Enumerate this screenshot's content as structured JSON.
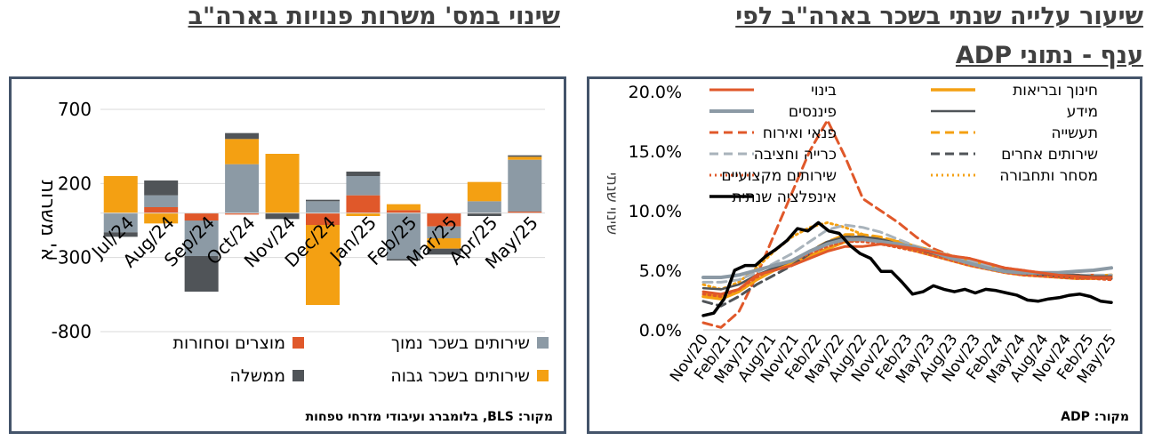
{
  "left": {
    "title": "שינוי במס' משרות פנויות בארה\"ב",
    "source": "מקור: BLS, בלומברג ועיבודי מזרחי טפחות",
    "chart_data": {
      "type": "bar",
      "stacked": true,
      "ylabel": "א' משרות",
      "ylim": [
        -800,
        700
      ],
      "yticks": [
        700,
        200,
        -300,
        -800
      ],
      "categories": [
        "Jul/24",
        "Aug/24",
        "Sep/24",
        "Oct/24",
        "Nov/24",
        "Dec/24",
        "Jan/25",
        "Feb/25",
        "Mar/25",
        "Apr/25",
        "May/25"
      ],
      "legend_position": "bottom",
      "series": [
        {
          "name": "מוצרים וסחורות",
          "color": "#e0582a",
          "values": [
            0,
            40,
            -50,
            -10,
            0,
            -80,
            120,
            20,
            -90,
            0,
            10
          ]
        },
        {
          "name": "שירותים בשכר נמוך",
          "color": "#8c9aa5",
          "values": [
            -130,
            80,
            -240,
            330,
            0,
            80,
            130,
            -310,
            -80,
            80,
            350
          ]
        },
        {
          "name": "שירותים בשכר גבוה",
          "color": "#f4a012",
          "values": [
            250,
            -70,
            0,
            170,
            400,
            -540,
            -20,
            40,
            -70,
            130,
            20
          ]
        },
        {
          "name": "ממשלה",
          "color": "#505458",
          "values": [
            -30,
            100,
            -240,
            40,
            -40,
            10,
            30,
            -10,
            -40,
            -20,
            10
          ]
        }
      ]
    }
  },
  "right": {
    "title_line1": "שיעור עלייה שנתי בשכר בארה\"ב לפי",
    "title_line2": "ענף - נתוני ADP",
    "source": "מקור: ADP",
    "chart_data": {
      "type": "line",
      "ylabel": "שינוי שנתי",
      "ylim": [
        0,
        20
      ],
      "yticks": [
        "0.0%",
        "5.0%",
        "10.0%",
        "15.0%",
        "20.0%"
      ],
      "x_tick_labels": [
        "Nov/20",
        "Feb/21",
        "May/21",
        "Aug/21",
        "Nov/21",
        "Feb/22",
        "May/22",
        "Aug/22",
        "Nov/22",
        "Feb/23",
        "May/23",
        "Aug/23",
        "Nov/23",
        "Feb/24",
        "May/24",
        "Aug/24",
        "Nov/24",
        "Feb/25",
        "May/25"
      ],
      "legend_position": "top",
      "series": [
        {
          "name": "בינוי",
          "color": "#e0582a",
          "dash": "solid",
          "width": 3,
          "values": [
            3.2,
            3.0,
            3.4,
            4.6,
            5.0,
            5.4,
            6.0,
            6.6,
            7.0,
            7.0,
            7.2,
            7.0,
            6.8,
            6.5,
            6.2,
            6.0,
            5.6,
            5.2,
            5.0,
            4.8,
            4.6,
            4.5,
            4.4,
            4.4
          ]
        },
        {
          "name": "חינוך ובריאות",
          "color": "#f4a012",
          "dash": "solid",
          "width": 3.5,
          "values": [
            2.8,
            2.6,
            3.2,
            4.2,
            5.0,
            5.6,
            6.2,
            6.8,
            7.4,
            7.6,
            7.6,
            7.4,
            7.0,
            6.6,
            6.2,
            5.8,
            5.4,
            5.0,
            4.8,
            4.6,
            4.5,
            4.5,
            4.5,
            4.6
          ]
        },
        {
          "name": "פיננסים",
          "color": "#8c9aa5",
          "dash": "solid",
          "width": 4,
          "values": [
            4.4,
            4.4,
            4.6,
            5.0,
            5.4,
            5.8,
            6.6,
            7.2,
            7.6,
            7.6,
            7.4,
            7.2,
            6.9,
            6.5,
            6.0,
            5.6,
            5.2,
            4.9,
            4.8,
            4.8,
            4.8,
            4.9,
            5.0,
            5.2
          ]
        },
        {
          "name": "מידע",
          "color": "#505458",
          "dash": "solid",
          "width": 2.5,
          "values": [
            3.5,
            3.4,
            3.8,
            4.6,
            5.2,
            5.8,
            6.6,
            7.4,
            7.8,
            7.8,
            7.6,
            7.2,
            6.8,
            6.4,
            6.0,
            5.6,
            5.2,
            5.0,
            4.8,
            4.7,
            4.6,
            4.6,
            4.5,
            4.5
          ]
        },
        {
          "name": "פנאי ואירוח",
          "color": "#e0582a",
          "dash": "dash",
          "width": 3,
          "values": [
            0.6,
            0.2,
            1.5,
            4.5,
            8.0,
            11.5,
            15.0,
            17.6,
            14.5,
            11.0,
            10.0,
            9.0,
            7.8,
            6.8,
            6.2,
            6.0,
            5.6,
            5.2,
            5.0,
            4.8,
            4.7,
            4.6,
            4.6,
            4.5
          ]
        },
        {
          "name": "תעשייה",
          "color": "#f4a012",
          "dash": "dash",
          "width": 3,
          "values": [
            3.0,
            2.8,
            3.2,
            4.2,
            5.0,
            5.8,
            6.6,
            7.4,
            8.0,
            8.0,
            7.8,
            7.4,
            7.0,
            6.6,
            6.2,
            5.8,
            5.4,
            5.0,
            4.8,
            4.6,
            4.5,
            4.4,
            4.4,
            4.4
          ]
        },
        {
          "name": "כרייה וחציבה",
          "color": "#a9b3bb",
          "dash": "dash",
          "width": 3,
          "values": [
            4.0,
            4.0,
            4.2,
            4.8,
            5.6,
            6.4,
            7.4,
            8.4,
            8.8,
            8.6,
            8.2,
            7.6,
            7.0,
            6.6,
            6.2,
            5.8,
            5.4,
            5.1,
            4.9,
            4.8,
            4.7,
            4.6,
            4.6,
            4.6
          ]
        },
        {
          "name": "שירותים אחרים",
          "color": "#505458",
          "dash": "dash",
          "width": 3,
          "values": [
            2.4,
            2.0,
            2.8,
            3.8,
            4.6,
            5.4,
            6.4,
            7.2,
            7.8,
            7.8,
            7.6,
            7.2,
            6.8,
            6.4,
            6.0,
            5.6,
            5.2,
            4.9,
            4.7,
            4.6,
            4.5,
            4.4,
            4.4,
            4.3
          ]
        },
        {
          "name": "שירותים מקצועיים",
          "color": "#e0582a",
          "dash": "dot",
          "width": 3,
          "values": [
            3.0,
            2.8,
            3.4,
            4.4,
            5.2,
            5.8,
            6.4,
            7.0,
            7.4,
            7.4,
            7.2,
            6.9,
            6.6,
            6.2,
            5.8,
            5.4,
            5.1,
            4.8,
            4.6,
            4.5,
            4.4,
            4.3,
            4.3,
            4.2
          ]
        },
        {
          "name": "מסחר ותחבורה",
          "color": "#f4a012",
          "dash": "dot",
          "width": 3,
          "values": [
            3.8,
            3.4,
            4.0,
            5.2,
            6.6,
            7.8,
            8.6,
            9.0,
            8.6,
            8.0,
            7.4,
            7.0,
            6.6,
            6.2,
            5.8,
            5.4,
            5.1,
            4.8,
            4.6,
            4.5,
            4.4,
            4.3,
            4.3,
            4.3
          ]
        },
        {
          "name": "אינפלציה שנתית",
          "color": "#000000",
          "dash": "solid",
          "width": 3.5,
          "values": [
            1.2,
            1.4,
            2.6,
            5.0,
            5.4,
            5.4,
            6.2,
            6.8,
            7.5,
            8.5,
            8.3,
            9.0,
            8.3,
            8.1,
            7.1,
            6.4,
            6.0,
            4.9,
            4.9,
            4.0,
            3.0,
            3.2,
            3.7,
            3.4,
            3.2,
            3.4,
            3.1,
            3.4,
            3.3,
            3.1,
            2.9,
            2.5,
            2.4,
            2.6,
            2.7,
            2.9,
            3.0,
            2.8,
            2.4,
            2.3
          ]
        }
      ]
    }
  }
}
